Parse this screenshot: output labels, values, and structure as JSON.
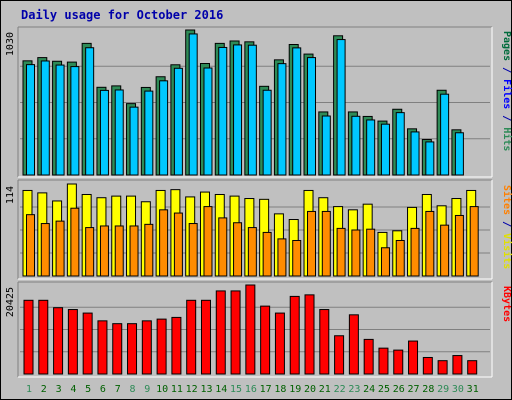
{
  "chart_data": {
    "type": "bar",
    "title": "Daily usage for October 2016",
    "categories": [
      "1",
      "2",
      "3",
      "4",
      "5",
      "6",
      "7",
      "8",
      "9",
      "10",
      "11",
      "12",
      "13",
      "14",
      "15",
      "16",
      "17",
      "18",
      "19",
      "20",
      "21",
      "22",
      "23",
      "24",
      "25",
      "26",
      "27",
      "28",
      "29",
      "30",
      "31"
    ],
    "weekend_days": [
      "1",
      "8",
      "9",
      "15",
      "16",
      "22",
      "23",
      "29",
      "30"
    ],
    "colors": {
      "title": "#0000aa",
      "weekday": "#006000",
      "weekend": "#2e8b57",
      "pages": "#006b3c",
      "files": "#0000ff",
      "hits": "#2e8b57",
      "sites": "#ff8000",
      "visits": "#e0e000",
      "kbytes": "#ff0000",
      "pages_bar": "#2e8b57",
      "files_bar": "#00c8ff",
      "visits_bar": "#ffff00",
      "sites_bar": "#ff8c00",
      "kbytes_bar": "#ff0000"
    },
    "panels": [
      {
        "id": "hits",
        "ymax_label": "1030",
        "ymax": 1030,
        "legend": [
          {
            "text": "Pages",
            "color_key": "pages"
          },
          {
            "text": " / ",
            "color_key": "title"
          },
          {
            "text": "Files",
            "color_key": "files"
          },
          {
            "text": " / ",
            "color_key": "title"
          },
          {
            "text": "Hits",
            "color_key": "hits"
          }
        ],
        "series": [
          {
            "name": "Hits",
            "bar_color_key": "pages_bar",
            "values": [
              811,
              834,
              808,
              802,
              935,
              623,
              633,
              507,
              622,
              698,
              783,
              1030,
              792,
              935,
              952,
              946,
              630,
              818,
              927,
              859,
              448,
              989,
              448,
              416,
              383,
              467,
              328,
              252,
              602,
              321,
              0
            ]
          },
          {
            "name": "Files",
            "bar_color_key": "files_bar",
            "values": [
              784,
              810,
              781,
              770,
              904,
              601,
              604,
              482,
              596,
              669,
              758,
              1002,
              760,
              906,
              924,
              922,
              602,
              791,
              903,
              834,
              419,
              962,
              417,
              391,
              361,
              443,
              306,
              235,
              574,
              300,
              0
            ]
          }
        ]
      },
      {
        "id": "visits",
        "ymax_label": "114",
        "ymax": 114,
        "legend": [
          {
            "text": "Sites",
            "color_key": "sites"
          },
          {
            "text": " / ",
            "color_key": "title"
          },
          {
            "text": "Visits",
            "color_key": "visits"
          }
        ],
        "series": [
          {
            "name": "Visits",
            "bar_color_key": "visits_bar",
            "values": [
              106,
              103,
              93,
              114,
              101,
              97,
              99,
              99,
              92,
              106,
              107,
              98,
              104,
              101,
              99,
              96,
              95,
              77,
              70,
              106,
              97,
              86,
              82,
              89,
              54,
              56,
              85,
              101,
              87,
              96,
              106
            ]
          },
          {
            "name": "Sites",
            "bar_color_key": "sites_bar",
            "values": [
              76,
              65,
              68,
              84,
              60,
              62,
              62,
              62,
              64,
              82,
              78,
              65,
              86,
              72,
              66,
              60,
              54,
              46,
              44,
              80,
              80,
              59,
              57,
              58,
              35,
              44,
              59,
              80,
              63,
              75,
              86
            ]
          }
        ]
      },
      {
        "id": "kbytes",
        "ymax_label": "20425",
        "ymax": 20425,
        "legend": [
          {
            "text": "KBytes",
            "color_key": "kbytes"
          }
        ],
        "series": [
          {
            "name": "KBytes",
            "bar_color_key": "kbytes_bar",
            "values": [
              16914,
              16914,
              15213,
              14793,
              13982,
              12200,
              11552,
              11552,
              12200,
              12597,
              12988,
              16914,
              16914,
              19066,
              19066,
              20425,
              15577,
              13982,
              17809,
              18164,
              14793,
              8779,
              13583,
              7940,
              5933,
              5482,
              7561,
              3791,
              3058,
              4232,
              3058
            ]
          }
        ]
      }
    ]
  }
}
